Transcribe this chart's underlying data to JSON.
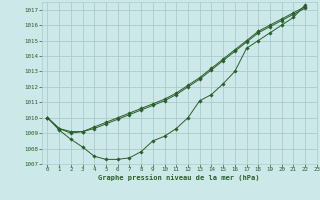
{
  "title": "Graphe pression niveau de la mer (hPa)",
  "bg_color": "#cde8e8",
  "grid_color": "#a8cccc",
  "line_color": "#2a5e2a",
  "xlim": [
    -0.5,
    23
  ],
  "ylim": [
    1007,
    1017.5
  ],
  "yticks": [
    1007,
    1008,
    1009,
    1010,
    1011,
    1012,
    1013,
    1014,
    1015,
    1016,
    1017
  ],
  "xticks": [
    0,
    1,
    2,
    3,
    4,
    5,
    6,
    7,
    8,
    9,
    10,
    11,
    12,
    13,
    14,
    15,
    16,
    17,
    18,
    19,
    20,
    21,
    22,
    23
  ],
  "series": [
    [
      1010.0,
      1009.2,
      1008.6,
      1008.1,
      1007.5,
      1007.3,
      1007.3,
      1007.4,
      1007.8,
      1008.5,
      1008.8,
      1009.3,
      1010.0,
      1011.1,
      1011.5,
      1012.2,
      1013.0,
      1014.5,
      1015.0,
      1015.5,
      1016.0,
      1016.5,
      1017.3
    ],
    [
      1010.0,
      1009.3,
      1009.0,
      1009.1,
      1009.3,
      1009.6,
      1009.9,
      1010.2,
      1010.5,
      1010.8,
      1011.1,
      1011.5,
      1012.0,
      1012.5,
      1013.1,
      1013.7,
      1014.3,
      1014.9,
      1015.5,
      1015.9,
      1016.3,
      1016.7,
      1017.1
    ],
    [
      1010.0,
      1009.3,
      1009.1,
      1009.1,
      1009.4,
      1009.7,
      1010.0,
      1010.3,
      1010.6,
      1010.9,
      1011.2,
      1011.6,
      1012.1,
      1012.6,
      1013.2,
      1013.8,
      1014.4,
      1015.0,
      1015.6,
      1016.0,
      1016.4,
      1016.8,
      1017.2
    ]
  ],
  "series_x": [
    0,
    1,
    2,
    3,
    4,
    5,
    6,
    7,
    8,
    9,
    10,
    11,
    12,
    13,
    14,
    15,
    16,
    17,
    18,
    19,
    20,
    21,
    22
  ]
}
